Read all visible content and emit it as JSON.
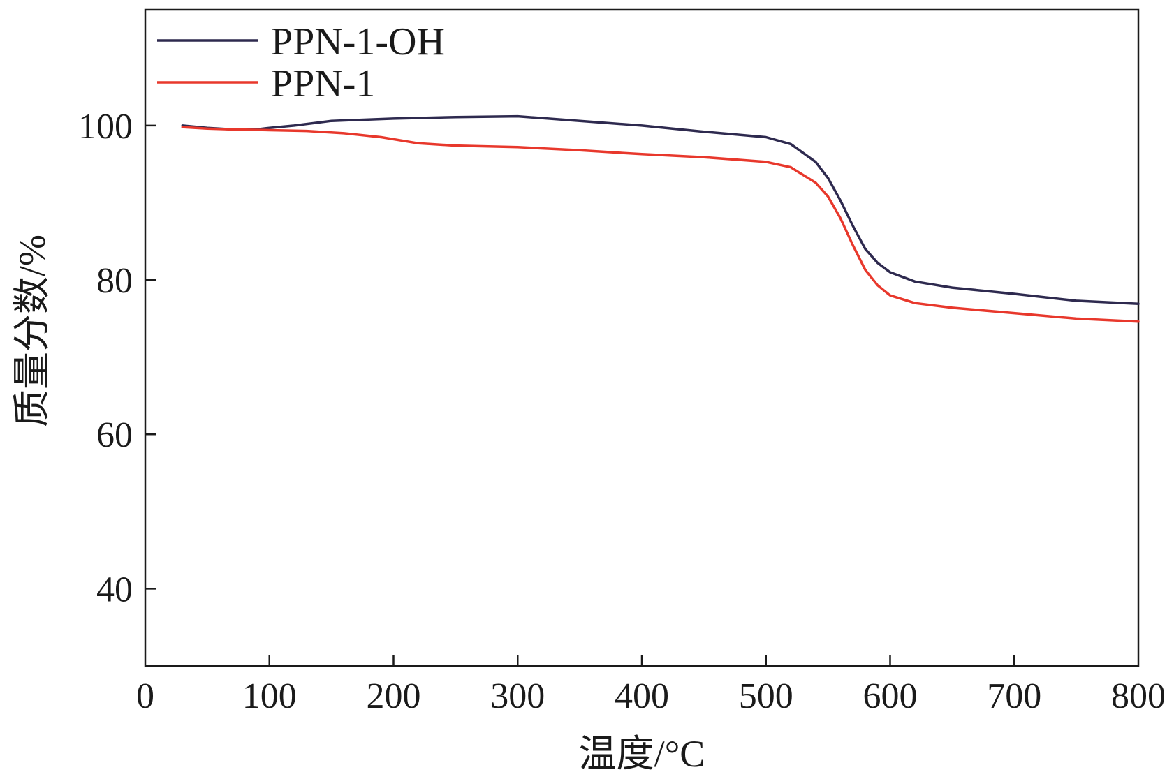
{
  "chart_data": {
    "type": "line",
    "xlabel": "温度/°C",
    "ylabel": "质量分数/%",
    "xlim": [
      0,
      800
    ],
    "ylim": [
      30,
      115
    ],
    "xticks": [
      0,
      100,
      200,
      300,
      400,
      500,
      600,
      700,
      800
    ],
    "yticks": [
      40,
      60,
      80,
      100
    ],
    "grid": false,
    "legend": "top-left",
    "series": [
      {
        "name": "PPN-1-OH",
        "color": "#2e2a4f",
        "x": [
          30,
          50,
          70,
          90,
          100,
          120,
          150,
          200,
          250,
          300,
          350,
          400,
          450,
          500,
          520,
          540,
          550,
          560,
          570,
          580,
          590,
          600,
          620,
          650,
          700,
          750,
          800
        ],
        "y": [
          100,
          99.7,
          99.5,
          99.5,
          99.7,
          100,
          100.6,
          100.9,
          101.1,
          101.2,
          100.6,
          100.0,
          99.2,
          98.5,
          97.6,
          95.3,
          93.2,
          90.3,
          87.0,
          84.0,
          82.2,
          81.0,
          79.8,
          79.0,
          78.2,
          77.3,
          76.9
        ]
      },
      {
        "name": "PPN-1",
        "color": "#e8382c",
        "x": [
          30,
          50,
          70,
          100,
          130,
          160,
          190,
          220,
          250,
          300,
          350,
          400,
          450,
          500,
          520,
          540,
          550,
          560,
          570,
          580,
          590,
          600,
          620,
          650,
          700,
          750,
          800
        ],
        "y": [
          99.8,
          99.6,
          99.5,
          99.4,
          99.3,
          99.0,
          98.5,
          97.7,
          97.4,
          97.2,
          96.8,
          96.3,
          95.9,
          95.3,
          94.6,
          92.6,
          90.8,
          88.0,
          84.5,
          81.3,
          79.3,
          78.0,
          77.0,
          76.4,
          75.7,
          75.0,
          74.6
        ]
      }
    ]
  }
}
